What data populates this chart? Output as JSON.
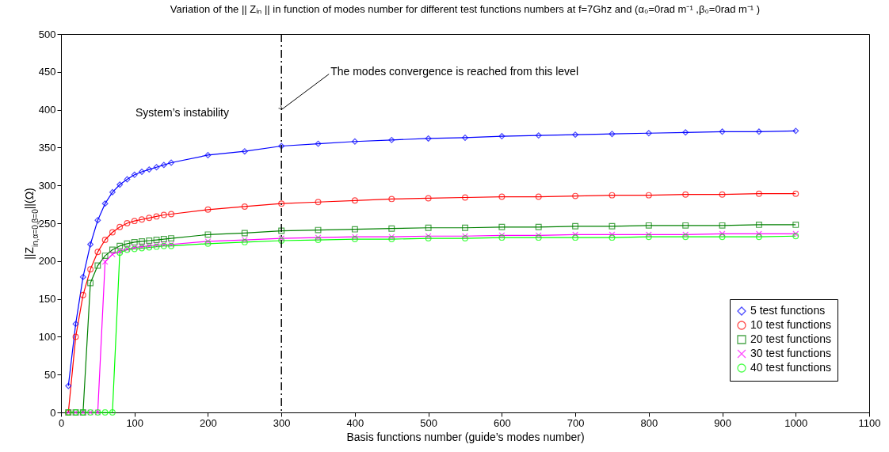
{
  "chart_data": {
    "type": "line",
    "title": "Variation of the || Zᵢₙ || in function of modes number for different test functions numbers at f=7Ghz  and (α₀=0rad m⁻¹ ,β₀=0rad m⁻¹ )",
    "xlabel": "Basis functions number  (guide’s modes number)",
    "ylabel": "||Z$_{in,α=0,β=0}$||(Ω)",
    "x": [
      10,
      20,
      30,
      40,
      50,
      60,
      70,
      80,
      90,
      100,
      110,
      120,
      130,
      140,
      150,
      200,
      250,
      300,
      350,
      400,
      450,
      500,
      550,
      600,
      650,
      700,
      750,
      800,
      850,
      900,
      950,
      1000
    ],
    "series": [
      {
        "name": "5 test functions",
        "color": "#0000ff",
        "marker": "diamond",
        "values": [
          35,
          117,
          179,
          222,
          254,
          276,
          291,
          301,
          308,
          314,
          318,
          321,
          324,
          327,
          330,
          340,
          345,
          352,
          355,
          358,
          360,
          362,
          363,
          365,
          366,
          367,
          368,
          369,
          370,
          371,
          371,
          372
        ]
      },
      {
        "name": "10 test functions",
        "color": "#ff0000",
        "marker": "circle",
        "values": [
          0,
          100,
          155,
          189,
          212,
          228,
          238,
          245,
          250,
          253,
          255,
          257,
          259,
          261,
          262,
          268,
          272,
          276,
          278,
          280,
          282,
          283,
          284,
          285,
          285,
          286,
          287,
          287,
          288,
          288,
          289,
          289
        ]
      },
      {
        "name": "20 test functions",
        "color": "#008000",
        "marker": "square",
        "values": [
          0,
          0,
          0,
          171,
          194,
          207,
          215,
          220,
          223,
          225,
          226,
          227,
          228,
          229,
          230,
          235,
          237,
          240,
          241,
          242,
          243,
          244,
          244,
          245,
          245,
          246,
          246,
          247,
          247,
          247,
          248,
          248
        ]
      },
      {
        "name": "30 test functions",
        "color": "#ff00ff",
        "marker": "cross",
        "values": [
          0,
          0,
          0,
          0,
          0,
          199,
          209,
          213,
          216,
          218,
          219,
          220,
          221,
          222,
          222,
          226,
          228,
          230,
          231,
          232,
          232,
          233,
          233,
          234,
          234,
          235,
          235,
          235,
          235,
          236,
          236,
          236
        ]
      },
      {
        "name": "40 test functions",
        "color": "#00ff00",
        "marker": "circle",
        "values": [
          0,
          0,
          0,
          0,
          0,
          0,
          0,
          211,
          215,
          216,
          217,
          218,
          219,
          220,
          220,
          223,
          225,
          227,
          228,
          229,
          229,
          230,
          230,
          231,
          231,
          231,
          231,
          232,
          232,
          232,
          232,
          233
        ]
      }
    ],
    "xlim": [
      0,
      1100
    ],
    "xticks": [
      0,
      100,
      200,
      300,
      400,
      500,
      600,
      700,
      800,
      900,
      1000,
      1100
    ],
    "ylim": [
      0,
      500
    ],
    "yticks": [
      0,
      50,
      100,
      150,
      200,
      250,
      300,
      350,
      400,
      450,
      500
    ],
    "grid": false,
    "legend": "bottom right",
    "line_style": "solid",
    "ref_lines": [
      {
        "axis": "x",
        "value": 300,
        "line_style": "dashed",
        "color": "#000000"
      }
    ],
    "annotations": [
      "System’s instability",
      {
        "text": "The modes convergence  is reached from this level",
        "x": 300,
        "y": 400
      }
    ]
  }
}
